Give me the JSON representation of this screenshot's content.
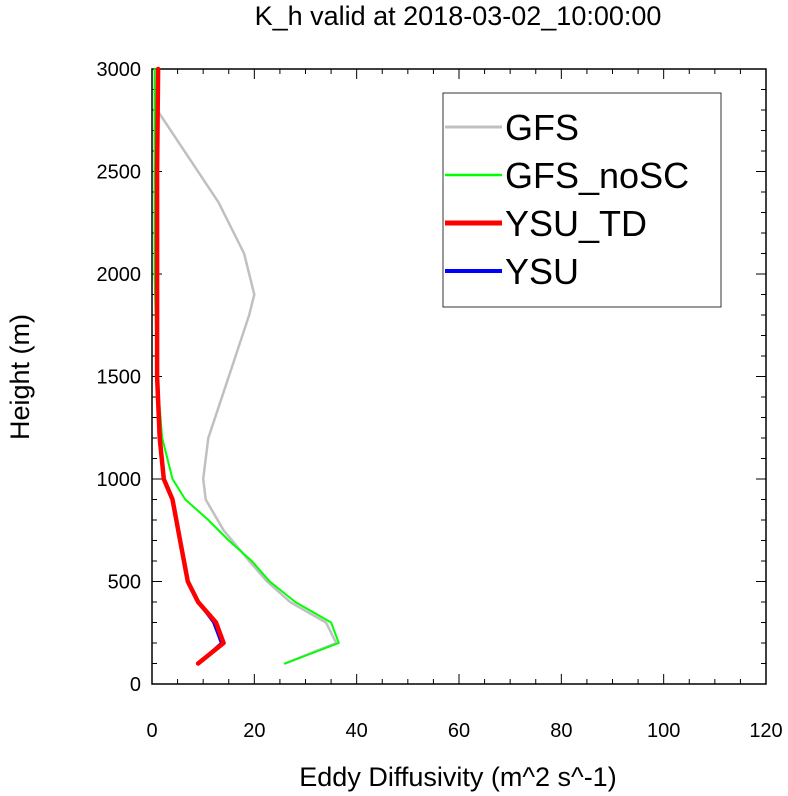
{
  "chart_data": {
    "type": "line",
    "title": "K_h valid at 2018-03-02_10:00:00",
    "xlabel": "Eddy Diffusivity (m^2 s^-1)",
    "ylabel": "Height (m)",
    "xlim": [
      0,
      120
    ],
    "ylim": [
      0,
      3000
    ],
    "xticks": [
      "0",
      "20",
      "40",
      "60",
      "80",
      "100",
      "120"
    ],
    "yticks": [
      "0",
      "500",
      "1000",
      "1500",
      "2000",
      "2500",
      "3000"
    ],
    "grid": false,
    "legend_position": "top-right",
    "series": [
      {
        "name": "GFS",
        "color": "#c0c0c0",
        "points": [
          [
            26,
            100
          ],
          [
            36,
            200
          ],
          [
            34,
            300
          ],
          [
            27,
            400
          ],
          [
            22.5,
            500
          ],
          [
            19,
            600
          ],
          [
            14,
            750
          ],
          [
            10.5,
            900
          ],
          [
            10,
            1000
          ],
          [
            11,
            1200
          ],
          [
            15,
            1500
          ],
          [
            19,
            1800
          ],
          [
            20,
            1900
          ],
          [
            18,
            2100
          ],
          [
            13,
            2350
          ],
          [
            5,
            2650
          ],
          [
            1,
            2800
          ],
          [
            1,
            3000
          ]
        ]
      },
      {
        "name": "GFS_noSC",
        "color": "#00ff00",
        "points": [
          [
            26,
            100
          ],
          [
            36.5,
            200
          ],
          [
            35,
            300
          ],
          [
            28,
            400
          ],
          [
            23,
            500
          ],
          [
            19.5,
            600
          ],
          [
            15,
            700
          ],
          [
            11,
            800
          ],
          [
            6.5,
            900
          ],
          [
            4,
            1000
          ],
          [
            2,
            1200
          ],
          [
            1,
            1500
          ],
          [
            0.5,
            2000
          ],
          [
            0.5,
            2500
          ],
          [
            0.5,
            3000
          ]
        ]
      },
      {
        "name": "YSU_TD",
        "color": "#ff0000",
        "points": [
          [
            9,
            100
          ],
          [
            14,
            200
          ],
          [
            12.5,
            300
          ],
          [
            9,
            400
          ],
          [
            7,
            500
          ],
          [
            5.5,
            700
          ],
          [
            4,
            900
          ],
          [
            2.3,
            1000
          ],
          [
            1.5,
            1200
          ],
          [
            1,
            1500
          ],
          [
            1,
            2000
          ],
          [
            1,
            2500
          ],
          [
            1.2,
            3000
          ]
        ]
      },
      {
        "name": "YSU",
        "color": "#0000ff",
        "points": [
          [
            9,
            100
          ],
          [
            13.5,
            200
          ],
          [
            12,
            300
          ],
          [
            9,
            400
          ],
          [
            7,
            500
          ],
          [
            5.5,
            700
          ],
          [
            4,
            900
          ],
          [
            2.3,
            1000
          ],
          [
            1.5,
            1200
          ],
          [
            1,
            1500
          ],
          [
            1,
            2000
          ],
          [
            1,
            2500
          ],
          [
            1.2,
            3000
          ]
        ]
      }
    ]
  }
}
